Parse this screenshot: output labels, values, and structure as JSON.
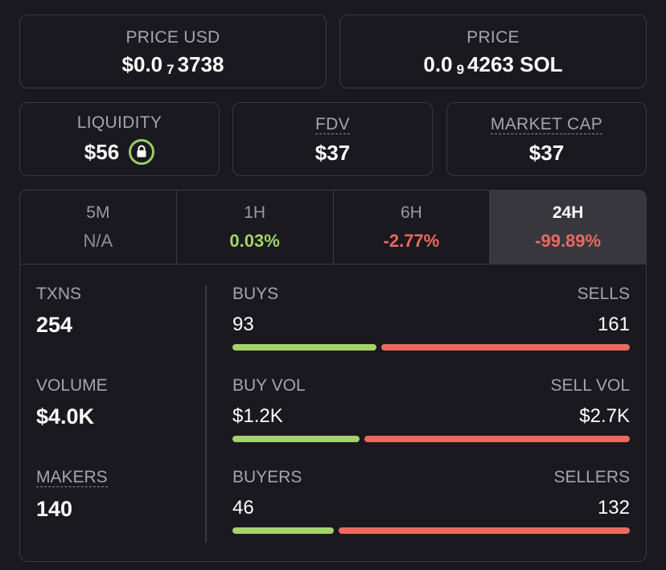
{
  "price_usd": {
    "label": "PRICE USD",
    "prefix": "$0.0",
    "zeros": "7",
    "digits": "3738"
  },
  "price_sol": {
    "label": "PRICE",
    "prefix": "0.0",
    "zeros": "9",
    "digits": "4263 SOL"
  },
  "liquidity": {
    "label": "LIQUIDITY",
    "value": "$56",
    "icon": "lock-icon"
  },
  "fdv": {
    "label": "FDV",
    "value": "$37"
  },
  "market_cap": {
    "label": "MARKET CAP",
    "value": "$37"
  },
  "tabs": [
    {
      "label": "5M",
      "value": "N/A",
      "kind": "na"
    },
    {
      "label": "1H",
      "value": "0.03%",
      "kind": "pos"
    },
    {
      "label": "6H",
      "value": "-2.77%",
      "kind": "neg"
    },
    {
      "label": "24H",
      "value": "-99.89%",
      "kind": "neg",
      "active": true
    }
  ],
  "metrics": {
    "txns": {
      "label": "TXNS",
      "value": "254"
    },
    "volume": {
      "label": "VOLUME",
      "value": "$4.0K"
    },
    "makers": {
      "label": "MAKERS",
      "value": "140"
    }
  },
  "splits": [
    {
      "left_label": "BUYS",
      "right_label": "SELLS",
      "left_value": "93",
      "right_value": "161",
      "buy_ratio": 0.366
    },
    {
      "left_label": "BUY VOL",
      "right_label": "SELL VOL",
      "left_value": "$1.2K",
      "right_value": "$2.7K",
      "buy_ratio": 0.324
    },
    {
      "left_label": "BUYERS",
      "right_label": "SELLERS",
      "left_value": "46",
      "right_value": "132",
      "buy_ratio": 0.258
    }
  ],
  "colors": {
    "buy": "#a3d36a",
    "sell": "#eb6a60",
    "active_tab_bg": "#38373d"
  }
}
